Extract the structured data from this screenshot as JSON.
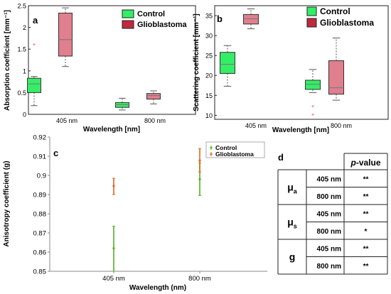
{
  "colors": {
    "control": "#33ee66",
    "glioblastoma": "#e07f8e",
    "glioblastoma_legend": "#c0283c",
    "outlier": "#ee2233",
    "whisker": "#555555",
    "median": "#777777",
    "errbar_control": "#55b022",
    "errbar_glio": "#e2641a"
  },
  "chart_data": [
    {
      "panel": "a",
      "type": "box",
      "ylabel": "Absorption coefficient [mm⁻¹]",
      "xlabel": "Wavelength [nm]",
      "categories": [
        "405 nm",
        "800 nm"
      ],
      "ylim": [
        0,
        2.5
      ],
      "yticks": [
        "0",
        "0.5",
        "1",
        "1.5",
        "2",
        "2.5"
      ],
      "legend": {
        "placement": "top-right",
        "entries": [
          "Control",
          "Glioblastoma"
        ]
      },
      "series": [
        {
          "name": "Control",
          "boxes": [
            {
              "min": 0.2,
              "q1": 0.5,
              "median": 0.7,
              "q3": 0.83,
              "max": 0.87,
              "outliers": [
                1.6
              ]
            },
            {
              "min": 0.1,
              "q1": 0.16,
              "median": 0.22,
              "q3": 0.27,
              "max": 0.37,
              "outliers": []
            }
          ]
        },
        {
          "name": "Glioblastoma",
          "boxes": [
            {
              "min": 1.1,
              "q1": 1.34,
              "median": 1.72,
              "q3": 2.33,
              "max": 2.45,
              "outliers": []
            },
            {
              "min": 0.24,
              "q1": 0.35,
              "median": 0.43,
              "q3": 0.48,
              "max": 0.54,
              "outliers": []
            }
          ]
        }
      ]
    },
    {
      "panel": "b",
      "type": "box",
      "ylabel": "Scattering coefficient [mm⁻¹]",
      "xlabel": "Wavelength [nm]",
      "categories": [
        "405 nm",
        "800 nm"
      ],
      "ylim": [
        9,
        37.5
      ],
      "yticks": [
        "10",
        "15",
        "20",
        "25",
        "30",
        "35"
      ],
      "legend": {
        "placement": "top-right",
        "entries": [
          "Control",
          "Glioblastoma"
        ]
      },
      "series": [
        {
          "name": "Control",
          "boxes": [
            {
              "min": 17.3,
              "q1": 20.5,
              "median": 22.8,
              "q3": 25.8,
              "max": 27.5,
              "outliers": []
            },
            {
              "min": 15.7,
              "q1": 16.5,
              "median": 17.8,
              "q3": 18.8,
              "max": 21.5,
              "outliers": [
                12.2,
                10.2
              ]
            }
          ]
        },
        {
          "name": "Glioblastoma",
          "boxes": [
            {
              "min": 31.7,
              "q1": 32.9,
              "median": 34.2,
              "q3": 35.3,
              "max": 36.7,
              "outliers": []
            },
            {
              "min": 13.8,
              "q1": 15.3,
              "median": 16.9,
              "q3": 23.7,
              "max": 29.4,
              "outliers": []
            }
          ]
        }
      ]
    },
    {
      "panel": "c",
      "type": "errorbar",
      "ylabel": "Anisotropy coefficient (g)",
      "xlabel": "Wavelength (nm)",
      "categories": [
        "405 nm",
        "800 nm"
      ],
      "ylim": [
        0.85,
        0.92
      ],
      "yticks": [
        "0.85",
        "0.86",
        "0.87",
        "0.88",
        "0.89",
        "0.9",
        "0.91",
        "0.92"
      ],
      "legend": {
        "placement": "top-right",
        "entries": [
          "Control",
          "Glioblastoma"
        ]
      },
      "series": [
        {
          "name": "Control",
          "points": [
            {
              "x": "405 nm",
              "y": 0.862,
              "low": 0.85,
              "high": 0.8735
            },
            {
              "x": "800 nm",
              "y": 0.898,
              "low": 0.8895,
              "high": 0.9065
            }
          ]
        },
        {
          "name": "Glioblastoma",
          "points": [
            {
              "x": "405 nm",
              "y": 0.8945,
              "low": 0.89,
              "high": 0.8985
            },
            {
              "x": "800 nm",
              "y": 0.9078,
              "low": 0.9018,
              "high": 0.914
            }
          ]
        }
      ]
    }
  ],
  "panels": {
    "a": {
      "label": "a"
    },
    "b": {
      "label": "b"
    },
    "c": {
      "label": "c"
    },
    "d": {
      "label": "d"
    }
  },
  "table_d": {
    "header": "p-value",
    "header_italic": "p",
    "header_rest": "-value",
    "groups": [
      {
        "symbol": "μ",
        "sub": "a",
        "rows": [
          {
            "wavelength": "405 nm",
            "value": "**"
          },
          {
            "wavelength": "800 nm",
            "value": "**"
          }
        ]
      },
      {
        "symbol": "μ",
        "sub": "s",
        "rows": [
          {
            "wavelength": "405 nm",
            "value": "**"
          },
          {
            "wavelength": "800 nm",
            "value": "*"
          }
        ]
      },
      {
        "symbol": "g",
        "sub": "",
        "rows": [
          {
            "wavelength": "405 nm",
            "value": "**"
          },
          {
            "wavelength": "800 nm",
            "value": "**"
          }
        ]
      }
    ]
  }
}
